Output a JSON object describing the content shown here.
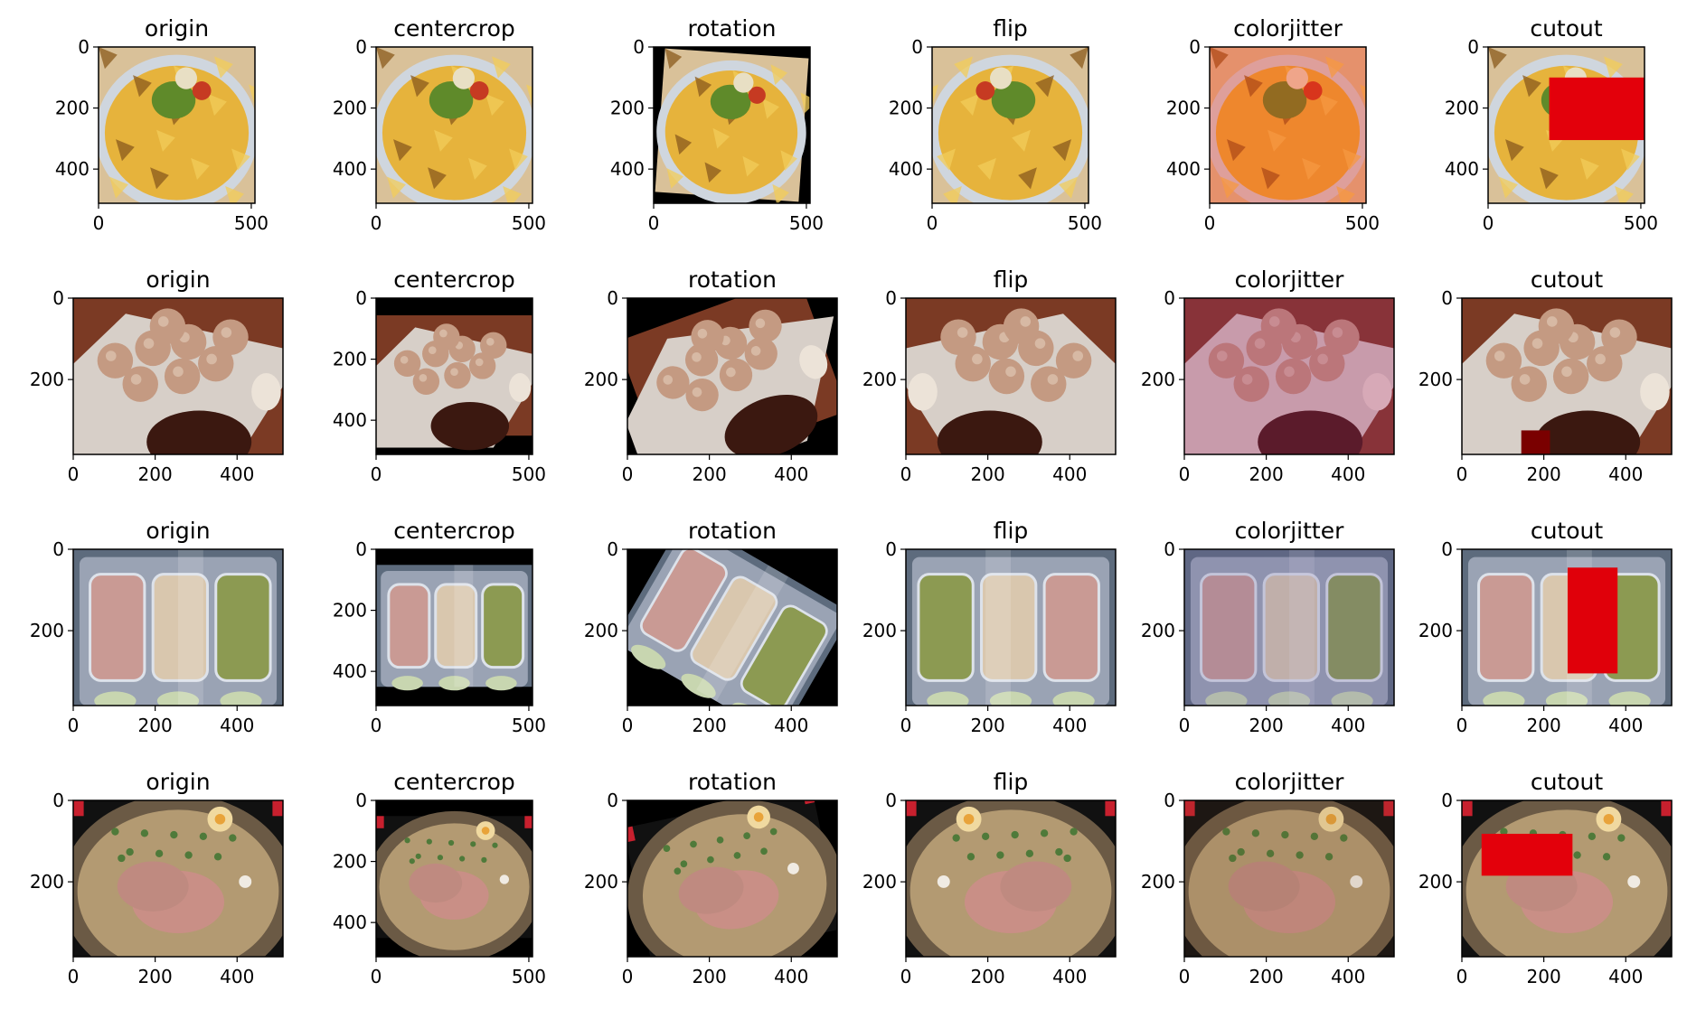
{
  "figure": {
    "background": "#ffffff",
    "rows": [
      {
        "name": "nachos",
        "palette": {
          "bg": "#d9c199",
          "food": "#e6b33c",
          "dark": "#8a5a1c",
          "accent": "#5f8a2a",
          "accent2": "#c63a22",
          "plate": "#cfd6de"
        },
        "xticks": [
          0,
          500
        ],
        "yticks": [
          0,
          200,
          400
        ],
        "xlim": [
          0,
          512
        ],
        "ylim": [
          512,
          0
        ],
        "panels": [
          {
            "title": "origin",
            "transform": "none",
            "xlim": [
              0,
              512
            ],
            "ylim": [
              512,
              0
            ]
          },
          {
            "title": "centercrop",
            "transform": "none",
            "xlim": [
              0,
              512
            ],
            "ylim": [
              512,
              0
            ]
          },
          {
            "title": "rotation",
            "transform": "rotate",
            "angle": 4,
            "xlim": [
              0,
              512
            ],
            "ylim": [
              512,
              0
            ]
          },
          {
            "title": "flip",
            "transform": "flip",
            "xlim": [
              0,
              512
            ],
            "ylim": [
              512,
              0
            ]
          },
          {
            "title": "colorjitter",
            "transform": "jitter",
            "tint": "#ff2a10",
            "tint_alpha": 0.32,
            "xlim": [
              0,
              512
            ],
            "ylim": [
              512,
              0
            ]
          },
          {
            "title": "cutout",
            "transform": "cutout",
            "cutout": {
              "x0": 200,
              "x1": 512,
              "y0": 100,
              "y1": 305,
              "color": "#e3000b"
            },
            "xlim": [
              0,
              512
            ],
            "ylim": [
              512,
              0
            ]
          }
        ]
      },
      {
        "name": "takoyaki",
        "palette": {
          "bg": "#7b3a24",
          "food": "#c49a82",
          "dark": "#3b1810",
          "accent": "#ece3d8",
          "accent2": "#5a2416",
          "plate": "#d7cfc8"
        },
        "panels": [
          {
            "title": "origin",
            "transform": "none",
            "xlim": [
              0,
              512
            ],
            "ylim": [
              384,
              0
            ],
            "xticks": [
              0,
              200,
              400
            ],
            "yticks": [
              0,
              200
            ]
          },
          {
            "title": "centercrop",
            "transform": "crop",
            "pad_top": 0.11,
            "pad_bottom": 0.12,
            "xlim": [
              0,
              512
            ],
            "ylim": [
              512,
              0
            ],
            "xticks": [
              0,
              500
            ],
            "yticks": [
              0,
              200,
              400
            ]
          },
          {
            "title": "rotation",
            "transform": "rotate",
            "angle": -20,
            "xlim": [
              0,
              512
            ],
            "ylim": [
              384,
              0
            ],
            "xticks": [
              0,
              200,
              400
            ],
            "yticks": [
              0,
              200
            ]
          },
          {
            "title": "flip",
            "transform": "flip",
            "xlim": [
              0,
              512
            ],
            "ylim": [
              384,
              0
            ],
            "xticks": [
              0,
              200,
              400
            ],
            "yticks": [
              0,
              200
            ]
          },
          {
            "title": "colorjitter",
            "transform": "jitter",
            "tint": "#a4246a",
            "tint_alpha": 0.3,
            "xlim": [
              0,
              512
            ],
            "ylim": [
              384,
              0
            ],
            "xticks": [
              0,
              200,
              400
            ],
            "yticks": [
              0,
              200
            ]
          },
          {
            "title": "cutout",
            "transform": "cutout",
            "cutout": {
              "x0": 145,
              "x1": 215,
              "y0": 325,
              "y1": 384,
              "color": "#7a0000"
            },
            "xlim": [
              0,
              512
            ],
            "ylim": [
              384,
              0
            ],
            "xticks": [
              0,
              200,
              400
            ],
            "yticks": [
              0,
              200
            ]
          }
        ]
      },
      {
        "name": "bento",
        "palette": {
          "bg": "#5d6b7d",
          "food": "#d9c7ae",
          "dark": "#2b3340",
          "accent": "#c99a94",
          "accent2": "#8c9a52",
          "plate": "#9aa3b4"
        },
        "panels": [
          {
            "title": "origin",
            "transform": "none",
            "xlim": [
              0,
              512
            ],
            "ylim": [
              384,
              0
            ],
            "xticks": [
              0,
              200,
              400
            ],
            "yticks": [
              0,
              200
            ]
          },
          {
            "title": "centercrop",
            "transform": "crop",
            "pad_top": 0.1,
            "pad_bottom": 0.12,
            "xlim": [
              0,
              512
            ],
            "ylim": [
              512,
              0
            ],
            "xticks": [
              0,
              500
            ],
            "yticks": [
              0,
              200,
              400
            ]
          },
          {
            "title": "rotation",
            "transform": "rotate",
            "angle": 30,
            "xlim": [
              0,
              512
            ],
            "ylim": [
              384,
              0
            ],
            "xticks": [
              0,
              200,
              400
            ],
            "yticks": [
              0,
              200
            ]
          },
          {
            "title": "flip",
            "transform": "flip",
            "xlim": [
              0,
              512
            ],
            "ylim": [
              384,
              0
            ],
            "xticks": [
              0,
              200,
              400
            ],
            "yticks": [
              0,
              200
            ]
          },
          {
            "title": "colorjitter",
            "transform": "jitter",
            "tint": "#6a5aa0",
            "tint_alpha": 0.22,
            "xlim": [
              0,
              512
            ],
            "ylim": [
              384,
              0
            ],
            "xticks": [
              0,
              200,
              400
            ],
            "yticks": [
              0,
              200
            ]
          },
          {
            "title": "cutout",
            "transform": "cutout",
            "cutout": {
              "x0": 258,
              "x1": 380,
              "y0": 45,
              "y1": 305,
              "color": "#e0000a"
            },
            "xlim": [
              0,
              512
            ],
            "ylim": [
              384,
              0
            ],
            "xticks": [
              0,
              200,
              400
            ],
            "yticks": [
              0,
              200
            ]
          }
        ]
      },
      {
        "name": "ramen",
        "palette": {
          "bg": "#111111",
          "food": "#b39a72",
          "dark": "#3a2a1c",
          "accent": "#c98f86",
          "accent2": "#4f7a3a",
          "plate": "#6b5a45"
        },
        "panels": [
          {
            "title": "origin",
            "transform": "none",
            "xlim": [
              0,
              512
            ],
            "ylim": [
              384,
              0
            ],
            "xticks": [
              0,
              200,
              400
            ],
            "yticks": [
              0,
              200
            ]
          },
          {
            "title": "centercrop",
            "transform": "crop",
            "pad_top": 0.1,
            "pad_bottom": 0.12,
            "xlim": [
              0,
              512
            ],
            "ylim": [
              512,
              0
            ],
            "xticks": [
              0,
              500
            ],
            "yticks": [
              0,
              200,
              400
            ]
          },
          {
            "title": "rotation",
            "transform": "rotate",
            "angle": -12,
            "xlim": [
              0,
              512
            ],
            "ylim": [
              384,
              0
            ],
            "xticks": [
              0,
              200,
              400
            ],
            "yticks": [
              0,
              200
            ]
          },
          {
            "title": "flip",
            "transform": "flip",
            "xlim": [
              0,
              512
            ],
            "ylim": [
              384,
              0
            ],
            "xticks": [
              0,
              200,
              400
            ],
            "yticks": [
              0,
              200
            ]
          },
          {
            "title": "colorjitter",
            "transform": "jitter",
            "tint": "#7a4a2a",
            "tint_alpha": 0.12,
            "xlim": [
              0,
              512
            ],
            "ylim": [
              384,
              0
            ],
            "xticks": [
              0,
              200,
              400
            ],
            "yticks": [
              0,
              200
            ]
          },
          {
            "title": "cutout",
            "transform": "cutout",
            "cutout": {
              "x0": 48,
              "x1": 270,
              "y0": 82,
              "y1": 185,
              "color": "#e3000b"
            },
            "xlim": [
              0,
              512
            ],
            "ylim": [
              384,
              0
            ],
            "xticks": [
              0,
              200,
              400
            ],
            "yticks": [
              0,
              200
            ]
          }
        ]
      }
    ]
  },
  "chart_data": {
    "type": "image_grid",
    "rows": 4,
    "cols": 6,
    "panel_titles": [
      "origin",
      "centercrop",
      "rotation",
      "flip",
      "colorjitter",
      "cutout"
    ],
    "axes": [
      {
        "row": 1,
        "xlim": [
          0,
          512
        ],
        "ylim": [
          512,
          0
        ],
        "xticks": [
          0,
          500
        ],
        "yticks": [
          0,
          200,
          400
        ]
      },
      {
        "row": 2,
        "xlim": [
          0,
          512
        ],
        "ylim": [
          384,
          0
        ],
        "xticks": [
          0,
          200,
          400
        ],
        "yticks": [
          0,
          200
        ],
        "centercrop": {
          "ylim": [
            512,
            0
          ],
          "xticks": [
            0,
            500
          ],
          "yticks": [
            0,
            200,
            400
          ]
        }
      },
      {
        "row": 3,
        "xlim": [
          0,
          512
        ],
        "ylim": [
          384,
          0
        ],
        "xticks": [
          0,
          200,
          400
        ],
        "yticks": [
          0,
          200
        ],
        "centercrop": {
          "ylim": [
            512,
            0
          ],
          "xticks": [
            0,
            500
          ],
          "yticks": [
            0,
            200,
            400
          ]
        }
      },
      {
        "row": 4,
        "xlim": [
          0,
          512
        ],
        "ylim": [
          384,
          0
        ],
        "xticks": [
          0,
          200,
          400
        ],
        "yticks": [
          0,
          200
        ],
        "centercrop": {
          "ylim": [
            512,
            0
          ],
          "xticks": [
            0,
            500
          ],
          "yticks": [
            0,
            200,
            400
          ]
        }
      }
    ],
    "cutout_regions": [
      {
        "row": 1,
        "x": [
          200,
          512
        ],
        "y": [
          100,
          305
        ]
      },
      {
        "row": 2,
        "x": [
          145,
          215
        ],
        "y": [
          325,
          384
        ]
      },
      {
        "row": 3,
        "x": [
          258,
          380
        ],
        "y": [
          45,
          305
        ]
      },
      {
        "row": 4,
        "x": [
          48,
          270
        ],
        "y": [
          82,
          185
        ]
      }
    ]
  }
}
